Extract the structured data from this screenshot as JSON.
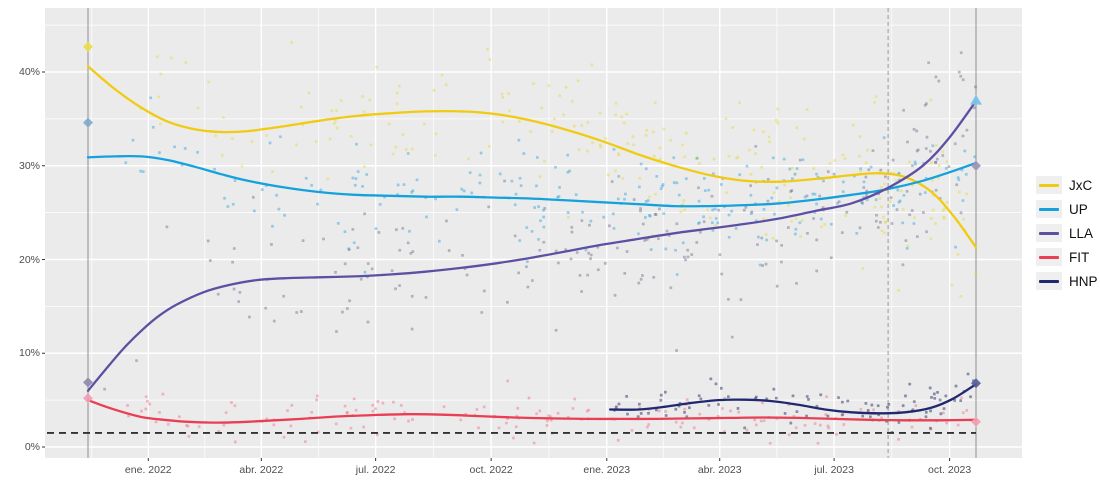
{
  "chart_data": {
    "type": "scatter",
    "description_title": "",
    "x_axis": {
      "ticks": [
        {
          "label": "ene. 2022",
          "f": 0.0679
        },
        {
          "label": "abr. 2022",
          "f": 0.1952
        },
        {
          "label": "jul. 2022",
          "f": 0.3239
        },
        {
          "label": "oct. 2022",
          "f": 0.454
        },
        {
          "label": "ene. 2023",
          "f": 0.5842
        },
        {
          "label": "abr. 2023",
          "f": 0.7114
        },
        {
          "label": "jul. 2023",
          "f": 0.8402
        },
        {
          "label": "oct. 2023",
          "f": 0.9703
        }
      ]
    },
    "y_axis": {
      "ticks": [
        {
          "label": "0%",
          "pct": 0
        },
        {
          "label": "10%",
          "pct": 10
        },
        {
          "label": "20%",
          "pct": 20
        },
        {
          "label": "30%",
          "pct": 30
        },
        {
          "label": "40%",
          "pct": 40
        }
      ],
      "minor_pcts": [
        5,
        15,
        25,
        35,
        45
      ],
      "range": [
        -1.2,
        46.8
      ],
      "grid": true
    },
    "reference_lines": [
      {
        "name": "election-2021",
        "f": 0.0,
        "style": "solid",
        "color": "#8f8f8f"
      },
      {
        "name": "paso-2023",
        "f": 0.901,
        "style": "dashed",
        "color": "#9a9a9a"
      },
      {
        "name": "election-2023",
        "f": 1.0,
        "style": "solid",
        "color": "#8f8f8f"
      }
    ],
    "threshold_line": {
      "pct": 1.5,
      "style": "dashed",
      "color": "#333333"
    },
    "legend": {
      "position": "right",
      "items": [
        "JxC",
        "UP",
        "LLA",
        "FIT",
        "HNP"
      ]
    },
    "series": [
      {
        "name": "JxC",
        "line_color": "#F0CB12",
        "point_color": "#E4DA3A",
        "point_alpha": 0.45,
        "scatter_n": 230,
        "scatter_sd": 4.2,
        "f_min": 0.0,
        "density_bias": 0.62,
        "trend": [
          [
            0,
            40.6
          ],
          [
            0.03,
            38.2
          ],
          [
            0.06,
            36.2
          ],
          [
            0.09,
            34.7
          ],
          [
            0.12,
            33.9
          ],
          [
            0.15,
            33.6
          ],
          [
            0.18,
            33.7
          ],
          [
            0.22,
            34.2
          ],
          [
            0.26,
            34.8
          ],
          [
            0.3,
            35.3
          ],
          [
            0.34,
            35.6
          ],
          [
            0.38,
            35.8
          ],
          [
            0.42,
            35.8
          ],
          [
            0.46,
            35.5
          ],
          [
            0.5,
            34.8
          ],
          [
            0.54,
            33.8
          ],
          [
            0.58,
            32.6
          ],
          [
            0.62,
            31.2
          ],
          [
            0.66,
            30.0
          ],
          [
            0.7,
            29.0
          ],
          [
            0.74,
            28.4
          ],
          [
            0.78,
            28.3
          ],
          [
            0.82,
            28.6
          ],
          [
            0.86,
            29.0
          ],
          [
            0.89,
            29.2
          ],
          [
            0.92,
            28.8
          ],
          [
            0.95,
            27.2
          ],
          [
            0.975,
            24.6
          ],
          [
            1,
            21.3
          ]
        ]
      },
      {
        "name": "UP",
        "line_color": "#14A2DC",
        "point_color": "#3FA9DE",
        "point_alpha": 0.5,
        "scatter_n": 230,
        "scatter_sd": 3.2,
        "f_min": 0.0,
        "density_bias": 0.62,
        "trend": [
          [
            0,
            30.9
          ],
          [
            0.03,
            31.0
          ],
          [
            0.06,
            31.0
          ],
          [
            0.09,
            30.6
          ],
          [
            0.12,
            29.9
          ],
          [
            0.15,
            29.1
          ],
          [
            0.18,
            28.4
          ],
          [
            0.22,
            27.7
          ],
          [
            0.26,
            27.2
          ],
          [
            0.3,
            26.9
          ],
          [
            0.34,
            26.8
          ],
          [
            0.38,
            26.7
          ],
          [
            0.42,
            26.7
          ],
          [
            0.46,
            26.6
          ],
          [
            0.5,
            26.5
          ],
          [
            0.54,
            26.3
          ],
          [
            0.58,
            26.1
          ],
          [
            0.62,
            25.9
          ],
          [
            0.66,
            25.7
          ],
          [
            0.7,
            25.7
          ],
          [
            0.74,
            25.8
          ],
          [
            0.78,
            26.0
          ],
          [
            0.82,
            26.4
          ],
          [
            0.86,
            26.9
          ],
          [
            0.9,
            27.5
          ],
          [
            0.94,
            28.4
          ],
          [
            0.97,
            29.3
          ],
          [
            1,
            30.3
          ]
        ]
      },
      {
        "name": "LLA",
        "line_color": "#5D50A3",
        "point_color": "#6F6A88",
        "point_alpha": 0.45,
        "scatter_n": 230,
        "scatter_sd": 4.0,
        "f_min": 0.0,
        "density_bias": 0.6,
        "trend": [
          [
            0,
            6.0
          ],
          [
            0.02,
            8.3
          ],
          [
            0.04,
            10.5
          ],
          [
            0.06,
            12.4
          ],
          [
            0.08,
            14.0
          ],
          [
            0.1,
            15.2
          ],
          [
            0.13,
            16.5
          ],
          [
            0.16,
            17.3
          ],
          [
            0.19,
            17.8
          ],
          [
            0.22,
            18.0
          ],
          [
            0.26,
            18.1
          ],
          [
            0.3,
            18.2
          ],
          [
            0.34,
            18.4
          ],
          [
            0.38,
            18.7
          ],
          [
            0.42,
            19.1
          ],
          [
            0.46,
            19.6
          ],
          [
            0.5,
            20.2
          ],
          [
            0.54,
            20.9
          ],
          [
            0.58,
            21.6
          ],
          [
            0.62,
            22.2
          ],
          [
            0.66,
            22.8
          ],
          [
            0.7,
            23.3
          ],
          [
            0.74,
            23.8
          ],
          [
            0.78,
            24.4
          ],
          [
            0.82,
            25.2
          ],
          [
            0.86,
            26.0
          ],
          [
            0.9,
            27.6
          ],
          [
            0.94,
            30.0
          ],
          [
            0.97,
            33.0
          ],
          [
            1,
            36.9
          ]
        ]
      },
      {
        "name": "FIT",
        "line_color": "#EA3E52",
        "point_color": "#F0798E",
        "point_alpha": 0.5,
        "scatter_n": 165,
        "scatter_sd": 1.15,
        "f_min": 0.0,
        "density_bias": 0.78,
        "trend": [
          [
            0,
            5.0
          ],
          [
            0.02,
            4.3
          ],
          [
            0.04,
            3.7
          ],
          [
            0.06,
            3.2
          ],
          [
            0.08,
            2.95
          ],
          [
            0.11,
            2.7
          ],
          [
            0.14,
            2.6
          ],
          [
            0.17,
            2.65
          ],
          [
            0.2,
            2.8
          ],
          [
            0.24,
            3.0
          ],
          [
            0.28,
            3.25
          ],
          [
            0.32,
            3.4
          ],
          [
            0.36,
            3.5
          ],
          [
            0.4,
            3.45
          ],
          [
            0.44,
            3.3
          ],
          [
            0.48,
            3.15
          ],
          [
            0.52,
            3.05
          ],
          [
            0.56,
            3.0
          ],
          [
            0.6,
            3.0
          ],
          [
            0.64,
            3.0
          ],
          [
            0.68,
            3.05
          ],
          [
            0.72,
            3.1
          ],
          [
            0.76,
            3.15
          ],
          [
            0.8,
            3.1
          ],
          [
            0.84,
            3.0
          ],
          [
            0.88,
            2.9
          ],
          [
            0.92,
            2.85
          ],
          [
            0.96,
            2.85
          ],
          [
            1,
            2.9
          ]
        ]
      },
      {
        "name": "HNP",
        "line_color": "#20296F",
        "point_color": "#39406F",
        "point_alpha": 0.55,
        "scatter_n": 90,
        "scatter_sd": 1.15,
        "f_min": 0.588,
        "density_bias": 0.85,
        "trend": [
          [
            0.588,
            4.0
          ],
          [
            0.62,
            4.0
          ],
          [
            0.65,
            4.3
          ],
          [
            0.68,
            4.7
          ],
          [
            0.71,
            5.0
          ],
          [
            0.74,
            5.05
          ],
          [
            0.77,
            4.9
          ],
          [
            0.8,
            4.5
          ],
          [
            0.83,
            4.0
          ],
          [
            0.86,
            3.7
          ],
          [
            0.89,
            3.6
          ],
          [
            0.92,
            3.7
          ],
          [
            0.95,
            4.2
          ],
          [
            0.975,
            5.2
          ],
          [
            1,
            6.7
          ]
        ]
      }
    ],
    "result_markers": [
      {
        "party": "JxC",
        "f": 0.0,
        "pct": 42.7,
        "shape": "diamond",
        "color": "#EBDD45"
      },
      {
        "party": "UP",
        "f": 0.0,
        "pct": 34.6,
        "shape": "diamond",
        "color": "#7FA8CC"
      },
      {
        "party": "LLA",
        "f": 0.0,
        "pct": 6.9,
        "shape": "diamond",
        "color": "#8F8AAD"
      },
      {
        "party": "FIT",
        "f": 0.0,
        "pct": 5.2,
        "shape": "diamond",
        "color": "#F29DB2"
      },
      {
        "party": "UP",
        "f": 1.0,
        "pct": 37.0,
        "shape": "triangle",
        "color": "#7CC3E8"
      },
      {
        "party": "LLA",
        "f": 1.0,
        "pct": 30.0,
        "shape": "diamond",
        "color": "#9A93B5"
      },
      {
        "party": "HNP",
        "f": 1.0,
        "pct": 6.8,
        "shape": "diamond",
        "color": "#555C96"
      },
      {
        "party": "FIT",
        "f": 1.0,
        "pct": 2.7,
        "shape": "diamond",
        "color": "#F2A0B0"
      }
    ],
    "panel_background": "#EBEBEB",
    "grid_color": "#FFFFFF",
    "seed": 1337
  }
}
